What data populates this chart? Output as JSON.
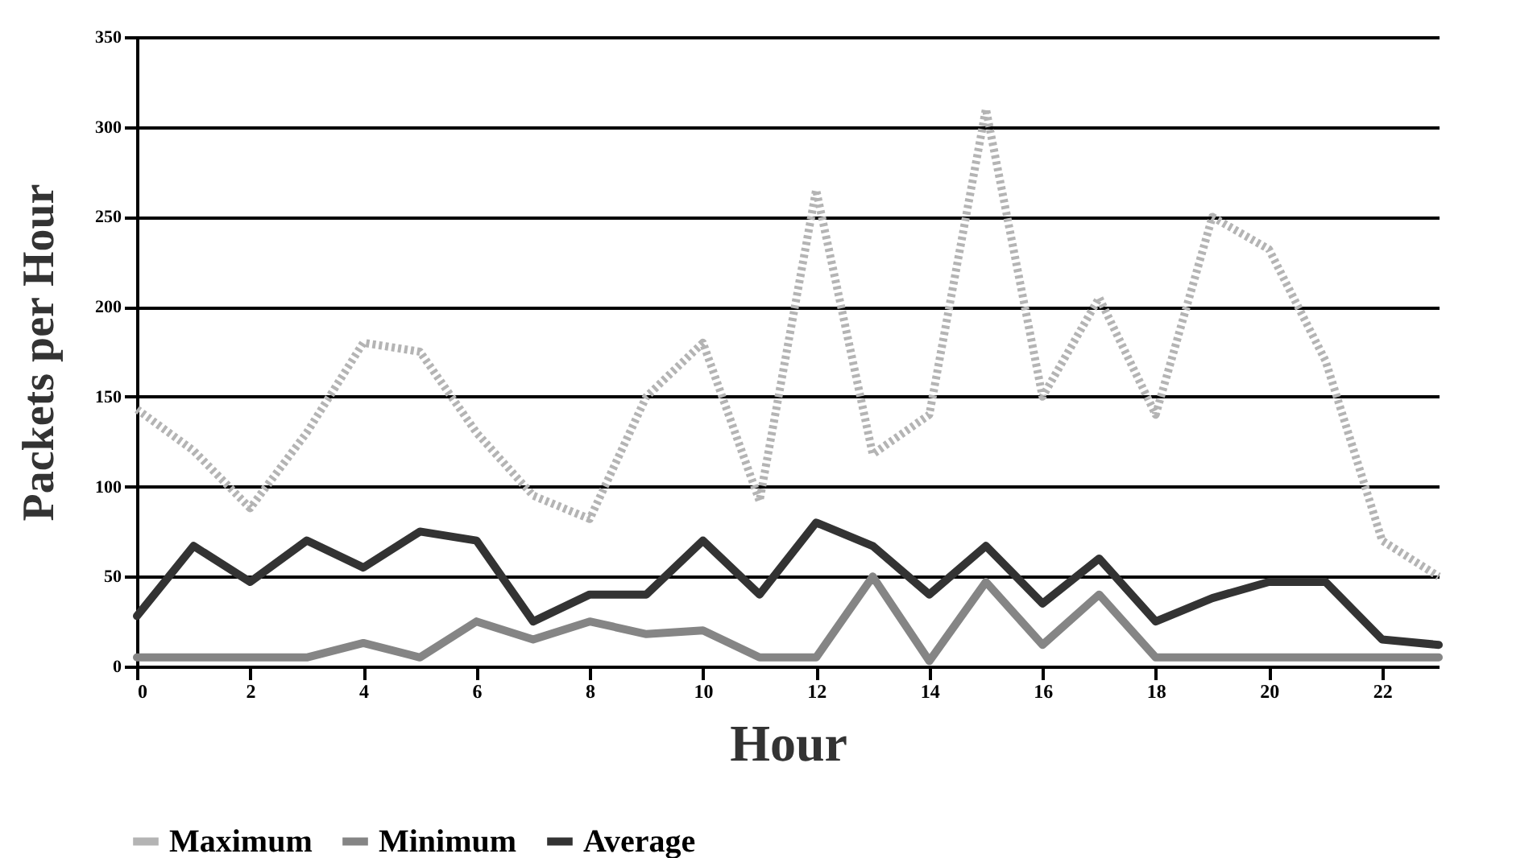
{
  "chart_data": {
    "type": "line",
    "xlabel": "Hour",
    "ylabel": "Packets per Hour",
    "x": [
      0,
      1,
      2,
      3,
      4,
      5,
      6,
      7,
      8,
      9,
      10,
      11,
      12,
      13,
      14,
      15,
      16,
      17,
      18,
      19,
      20,
      21,
      22,
      23
    ],
    "series": [
      {
        "name": "Maximum",
        "color": "#b4b4b4",
        "line_style": "dotted",
        "values": [
          143,
          120,
          88,
          130,
          180,
          175,
          130,
          95,
          82,
          150,
          180,
          92,
          265,
          118,
          140,
          310,
          150,
          205,
          140,
          250,
          232,
          170,
          70,
          50
        ]
      },
      {
        "name": "Minimum",
        "color": "#858585",
        "values": [
          5,
          5,
          5,
          5,
          13,
          5,
          25,
          15,
          25,
          18,
          20,
          5,
          5,
          50,
          3,
          47,
          12,
          40,
          5,
          5,
          5,
          5,
          5,
          5
        ]
      },
      {
        "name": "Average",
        "color": "#333333",
        "values": [
          28,
          67,
          47,
          70,
          55,
          75,
          70,
          25,
          40,
          40,
          70,
          40,
          80,
          67,
          40,
          67,
          35,
          60,
          25,
          38,
          47,
          47,
          15,
          12
        ]
      }
    ],
    "xlim": [
      0,
      23
    ],
    "xticks": [
      0,
      2,
      4,
      6,
      8,
      10,
      12,
      14,
      16,
      18,
      20,
      22
    ],
    "ylim": [
      0,
      350
    ],
    "yticks": [
      0,
      50,
      100,
      150,
      200,
      250,
      300,
      350
    ],
    "grid": "y",
    "legend": "bottom left",
    "marker": "none"
  }
}
